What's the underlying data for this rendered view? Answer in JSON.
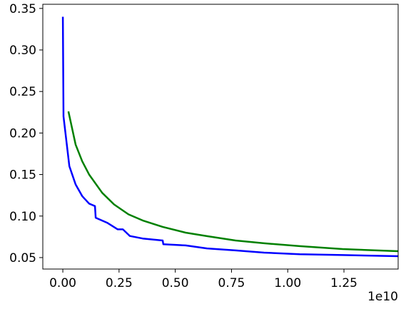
{
  "chart_data": {
    "type": "line",
    "x_offset_label": "1e10",
    "xlim": [
      -0.089,
      1.491
    ],
    "ylim": [
      0.0362,
      0.355
    ],
    "xticks": [
      {
        "value": 0,
        "label": "0.00"
      },
      {
        "value": 0.25,
        "label": "0.25"
      },
      {
        "value": 0.5,
        "label": "0.50"
      },
      {
        "value": 0.75,
        "label": "0.75"
      },
      {
        "value": 1,
        "label": "1.00"
      },
      {
        "value": 1.25,
        "label": "1.25"
      }
    ],
    "yticks": [
      {
        "value": 0.05,
        "label": "0.05"
      },
      {
        "value": 0.1,
        "label": "0.10"
      },
      {
        "value": 0.15,
        "label": "0.15"
      },
      {
        "value": 0.2,
        "label": "0.20"
      },
      {
        "value": 0.25,
        "label": "0.25"
      },
      {
        "value": 0.3,
        "label": "0.30"
      },
      {
        "value": 0.35,
        "label": "0.35"
      }
    ],
    "series": [
      {
        "color": "#0000ff",
        "x": [
          0.0,
          0.003,
          0.029,
          0.057,
          0.086,
          0.117,
          0.143,
          0.146,
          0.197,
          0.244,
          0.267,
          0.292,
          0.298,
          0.355,
          0.444,
          0.447,
          0.546,
          0.641,
          0.768,
          0.895,
          1.053,
          1.244,
          1.491
        ],
        "values": [
          0.34,
          0.22,
          0.16,
          0.138,
          0.124,
          0.115,
          0.112,
          0.098,
          0.092,
          0.084,
          0.084,
          0.0775,
          0.076,
          0.073,
          0.0706,
          0.066,
          0.0646,
          0.061,
          0.0586,
          0.056,
          0.054,
          0.053,
          0.0517
        ]
      },
      {
        "color": "#008000",
        "x": [
          0.025,
          0.057,
          0.086,
          0.117,
          0.175,
          0.228,
          0.292,
          0.355,
          0.444,
          0.546,
          0.641,
          0.768,
          0.895,
          1.053,
          1.244,
          1.491
        ],
        "values": [
          0.226,
          0.186,
          0.166,
          0.15,
          0.128,
          0.114,
          0.102,
          0.0947,
          0.087,
          0.08,
          0.0758,
          0.0706,
          0.0672,
          0.0638,
          0.0603,
          0.0577
        ]
      }
    ]
  }
}
